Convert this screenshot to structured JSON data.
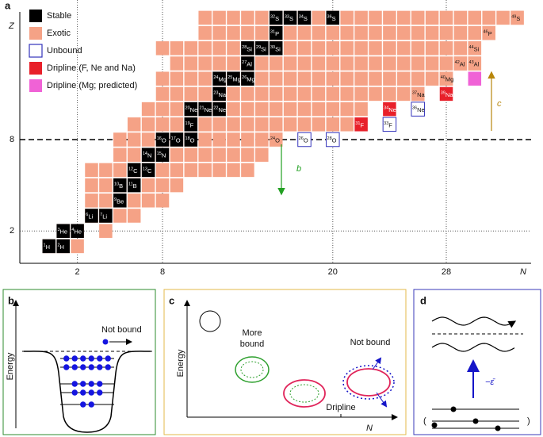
{
  "panel_a": {
    "label": "a",
    "z_axis": "Z",
    "n_axis": "N",
    "z_ticks": [
      "8",
      "2"
    ],
    "n_ticks": [
      "2",
      "8",
      "20",
      "28"
    ],
    "legend": [
      "Stable",
      "Exotic",
      "Unbound",
      "Dripline (F, Ne and Na)",
      "Dripline (Mg; predicted)"
    ],
    "arrow_labels": [
      "b",
      "c"
    ],
    "rows": [
      [
        1,
        0,
        2
      ],
      [
        2,
        1,
        2
      ],
      [
        2,
        4,
        4
      ],
      [
        3,
        3,
        6
      ],
      [
        4,
        3,
        8
      ],
      [
        5,
        3,
        9
      ],
      [
        6,
        3,
        14
      ],
      [
        7,
        5,
        15
      ],
      [
        8,
        5,
        16
      ],
      [
        9,
        6,
        21
      ],
      [
        10,
        7,
        22
      ],
      [
        11,
        8,
        26
      ],
      [
        12,
        8,
        28
      ],
      [
        13,
        9,
        30
      ],
      [
        14,
        8,
        30
      ],
      [
        15,
        11,
        31
      ],
      [
        16,
        11,
        33
      ]
    ],
    "nuclides": [
      {
        "mass": "1",
        "el": "H",
        "n": 0,
        "z": 1,
        "kind": "stable"
      },
      {
        "mass": "2",
        "el": "H",
        "n": 1,
        "z": 1,
        "kind": "stable"
      },
      {
        "mass": "3",
        "el": "He",
        "n": 1,
        "z": 2,
        "kind": "stable"
      },
      {
        "mass": "4",
        "el": "He",
        "n": 2,
        "z": 2,
        "kind": "stable"
      },
      {
        "mass": "6",
        "el": "Li",
        "n": 3,
        "z": 3,
        "kind": "stable"
      },
      {
        "mass": "7",
        "el": "Li",
        "n": 4,
        "z": 3,
        "kind": "stable"
      },
      {
        "mass": "9",
        "el": "Be",
        "n": 5,
        "z": 4,
        "kind": "stable"
      },
      {
        "mass": "10",
        "el": "B",
        "n": 5,
        "z": 5,
        "kind": "stable"
      },
      {
        "mass": "11",
        "el": "B",
        "n": 6,
        "z": 5,
        "kind": "stable"
      },
      {
        "mass": "12",
        "el": "C",
        "n": 6,
        "z": 6,
        "kind": "stable"
      },
      {
        "mass": "13",
        "el": "C",
        "n": 7,
        "z": 6,
        "kind": "stable"
      },
      {
        "mass": "14",
        "el": "N",
        "n": 7,
        "z": 7,
        "kind": "stable"
      },
      {
        "mass": "15",
        "el": "N",
        "n": 8,
        "z": 7,
        "kind": "stable"
      },
      {
        "mass": "16",
        "el": "O",
        "n": 8,
        "z": 8,
        "kind": "stable"
      },
      {
        "mass": "17",
        "el": "O",
        "n": 9,
        "z": 8,
        "kind": "stable"
      },
      {
        "mass": "18",
        "el": "O",
        "n": 10,
        "z": 8,
        "kind": "stable"
      },
      {
        "mass": "24",
        "el": "O",
        "n": 16,
        "z": 8,
        "kind": "exotic"
      },
      {
        "mass": "26",
        "el": "O",
        "n": 18,
        "z": 8,
        "kind": "unbound"
      },
      {
        "mass": "28",
        "el": "O",
        "n": 20,
        "z": 8,
        "kind": "unbound"
      },
      {
        "mass": "19",
        "el": "F",
        "n": 10,
        "z": 9,
        "kind": "stable"
      },
      {
        "mass": "31",
        "el": "F",
        "n": 22,
        "z": 9,
        "kind": "drip"
      },
      {
        "mass": "33",
        "el": "F",
        "n": 24,
        "z": 9,
        "kind": "unbound"
      },
      {
        "mass": "20",
        "el": "Ne",
        "n": 10,
        "z": 10,
        "kind": "stable"
      },
      {
        "mass": "21",
        "el": "Ne",
        "n": 11,
        "z": 10,
        "kind": "stable"
      },
      {
        "mass": "22",
        "el": "Ne",
        "n": 12,
        "z": 10,
        "kind": "stable"
      },
      {
        "mass": "34",
        "el": "Ne",
        "n": 24,
        "z": 10,
        "kind": "drip"
      },
      {
        "mass": "36",
        "el": "Ne",
        "n": 26,
        "z": 10,
        "kind": "unbound"
      },
      {
        "mass": "23",
        "el": "Na",
        "n": 12,
        "z": 11,
        "kind": "stable"
      },
      {
        "mass": "37",
        "el": "Na",
        "n": 26,
        "z": 11,
        "kind": "exotic"
      },
      {
        "mass": "39",
        "el": "Na",
        "n": 28,
        "z": 11,
        "kind": "drip"
      },
      {
        "mass": "24",
        "el": "Mg",
        "n": 12,
        "z": 12,
        "kind": "stable"
      },
      {
        "mass": "25",
        "el": "Mg",
        "n": 13,
        "z": 12,
        "kind": "stable"
      },
      {
        "mass": "26",
        "el": "Mg",
        "n": 14,
        "z": 12,
        "kind": "stable"
      },
      {
        "mass": "40",
        "el": "Mg",
        "n": 28,
        "z": 12,
        "kind": "exotic"
      },
      {
        "n": 30,
        "z": 12,
        "kind": "pred"
      },
      {
        "mass": "27",
        "el": "Al",
        "n": 14,
        "z": 13,
        "kind": "stable"
      },
      {
        "mass": "42",
        "el": "Al",
        "n": 29,
        "z": 13,
        "kind": "exotic"
      },
      {
        "mass": "43",
        "el": "Al",
        "n": 30,
        "z": 13,
        "kind": "exotic"
      },
      {
        "mass": "28",
        "el": "Si",
        "n": 14,
        "z": 14,
        "kind": "stable"
      },
      {
        "mass": "29",
        "el": "Si",
        "n": 15,
        "z": 14,
        "kind": "stable"
      },
      {
        "mass": "30",
        "el": "Si",
        "n": 16,
        "z": 14,
        "kind": "stable"
      },
      {
        "mass": "44",
        "el": "Si",
        "n": 30,
        "z": 14,
        "kind": "exotic"
      },
      {
        "mass": "31",
        "el": "P",
        "n": 16,
        "z": 15,
        "kind": "stable"
      },
      {
        "mass": "46",
        "el": "P",
        "n": 31,
        "z": 15,
        "kind": "exotic"
      },
      {
        "mass": "32",
        "el": "S",
        "n": 16,
        "z": 16,
        "kind": "stable"
      },
      {
        "mass": "33",
        "el": "S",
        "n": 17,
        "z": 16,
        "kind": "stable"
      },
      {
        "mass": "34",
        "el": "S",
        "n": 18,
        "z": 16,
        "kind": "stable"
      },
      {
        "mass": "36",
        "el": "S",
        "n": 20,
        "z": 16,
        "kind": "stable"
      },
      {
        "mass": "49",
        "el": "S",
        "n": 33,
        "z": 16,
        "kind": "exotic"
      }
    ]
  },
  "panel_b": {
    "label": "b",
    "y_axis": "Energy",
    "note": "Not bound"
  },
  "panel_c": {
    "label": "c",
    "y_axis": "Energy",
    "x_axis": "N",
    "more_bound": [
      "More",
      "bound"
    ],
    "not_bound": "Not bound",
    "dripline": "Dripline"
  },
  "panel_d": {
    "label": "d",
    "energy": "−ε̄",
    "open": "(",
    "close": ")"
  }
}
